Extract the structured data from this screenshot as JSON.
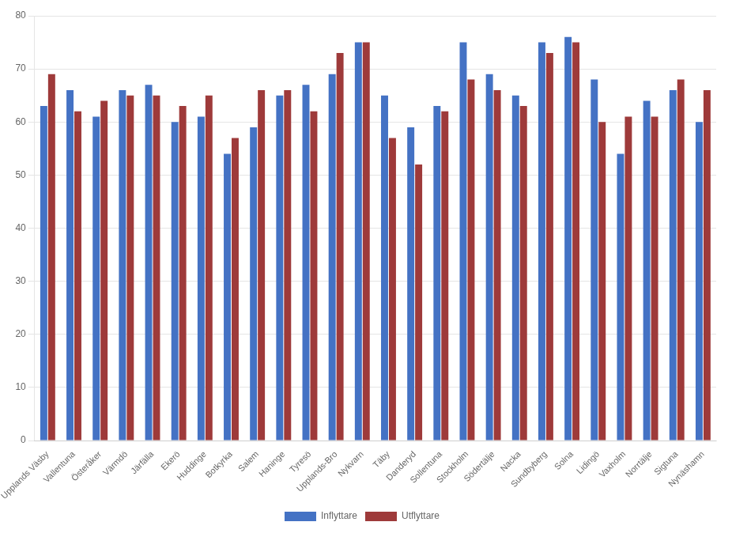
{
  "chart_data": {
    "type": "bar",
    "categories": [
      "Upplands Väsby",
      "Vallentuna",
      "Österåker",
      "Värmdö",
      "Järfälla",
      "Ekerö",
      "Huddinge",
      "Botkyrka",
      "Salem",
      "Haninge",
      "Tyresö",
      "Upplands-Bro",
      "Nykvarn",
      "Täby",
      "Danderyd",
      "Sollentuna",
      "Stockholm",
      "Södertälje",
      "Nacka",
      "Sundbyberg",
      "Solna",
      "Lidingö",
      "Vaxholm",
      "Norrtälje",
      "Sigtuna",
      "Nynäshamn"
    ],
    "series": [
      {
        "name": "Inflyttare",
        "color": "#4472C4",
        "values": [
          63,
          66,
          61,
          66,
          67,
          60,
          61,
          54,
          59,
          65,
          67,
          69,
          75,
          65,
          59,
          63,
          75,
          69,
          65,
          75,
          76,
          68,
          54,
          64,
          66,
          60
        ]
      },
      {
        "name": "Utflyttare",
        "color": "#9E3A3A",
        "values": [
          69,
          62,
          64,
          65,
          65,
          63,
          65,
          57,
          66,
          66,
          62,
          73,
          75,
          57,
          52,
          62,
          68,
          66,
          63,
          73,
          75,
          60,
          61,
          61,
          68,
          66
        ]
      }
    ],
    "ylim": [
      0,
      80
    ],
    "yticks": [
      0,
      10,
      20,
      30,
      40,
      50,
      60,
      70,
      80
    ],
    "grid": true,
    "legend": "bottom"
  }
}
